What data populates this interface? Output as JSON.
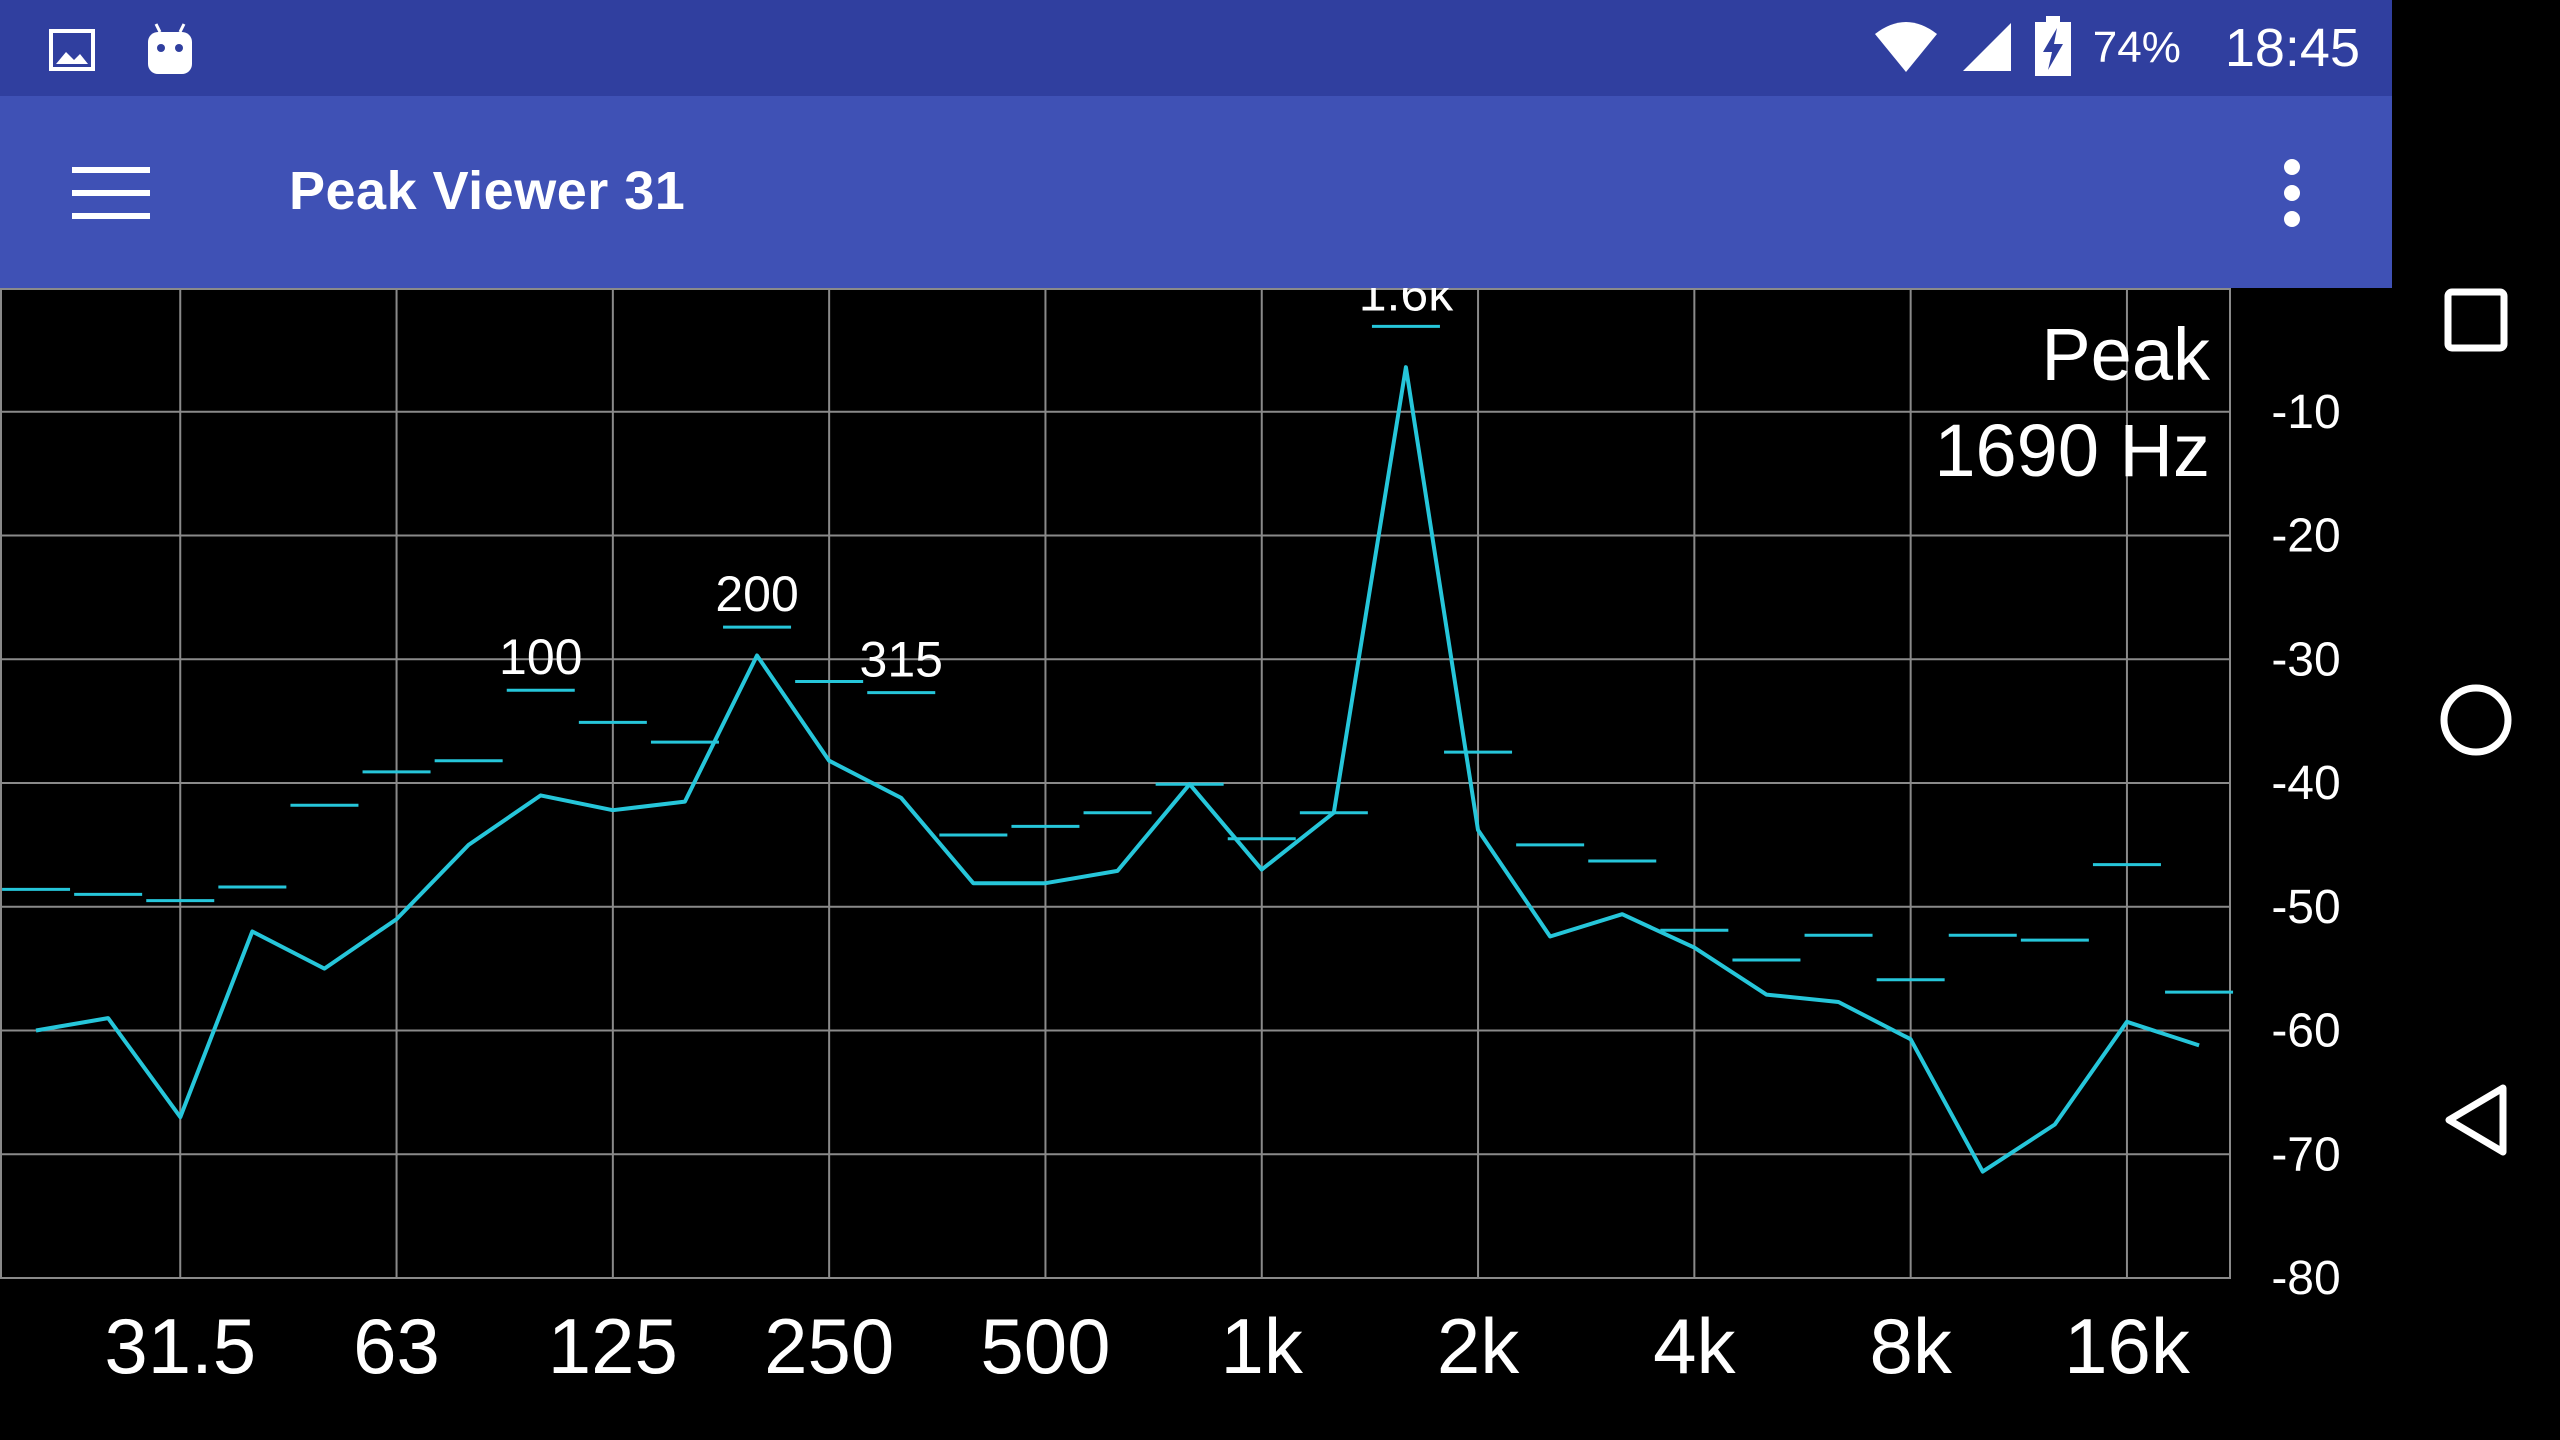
{
  "status_bar": {
    "battery_percent": "74%",
    "time": "18:45",
    "icons": [
      "image-icon",
      "android-icon",
      "wifi-icon",
      "signal-icon",
      "battery-charging-icon"
    ]
  },
  "app_bar": {
    "title": "Peak Viewer 31",
    "menu_icon": "hamburger-menu-icon",
    "overflow_icon": "more-vert-icon",
    "background": "#3f51b5",
    "status_background": "#303f9f"
  },
  "navigation": {
    "icons": [
      "recent-apps-icon",
      "home-icon",
      "back-icon"
    ]
  },
  "peak_info": {
    "label": "Peak",
    "frequency": "1690 Hz"
  },
  "chart_data": {
    "type": "line",
    "title": "",
    "xlabel": "",
    "ylabel": "",
    "ylim": [
      -80,
      0
    ],
    "y_ticks": [
      -10,
      -20,
      -30,
      -40,
      -50,
      -60,
      -70,
      -80
    ],
    "y_tick_labels": [
      "-10",
      "-20",
      "-30",
      "-40",
      "-50",
      "-60",
      "-70",
      "-80"
    ],
    "x_tick_labels": [
      "31.5",
      "63",
      "125",
      "250",
      "500",
      "1k",
      "2k",
      "4k",
      "8k",
      "16k"
    ],
    "bands": [
      "20",
      "25",
      "31.5",
      "40",
      "50",
      "63",
      "80",
      "100",
      "125",
      "160",
      "200",
      "250",
      "315",
      "400",
      "500",
      "630",
      "800",
      "1k",
      "1.25k",
      "1.6k",
      "2k",
      "2.5k",
      "3.15k",
      "4k",
      "5k",
      "6.3k",
      "8k",
      "10k",
      "12.5k",
      "16k",
      "20k"
    ],
    "grid": true,
    "line_color": "#26c6da",
    "series": [
      {
        "values": [
          -60,
          -59,
          -67,
          -52,
          -55,
          -51,
          -45,
          -41,
          -42.2,
          -41.5,
          -29.7,
          -38.2,
          -41.2,
          -48.1,
          -48.1,
          -47.1,
          -40.1,
          -47.0,
          -42.4,
          -6.4,
          -43.8,
          -52.4,
          -50.6,
          -53.3,
          -57.1,
          -57.7,
          -60.7,
          -71.4,
          -67.6,
          -59.3,
          -61.2
        ]
      },
      {
        "values": [
          -48.6,
          -49.0,
          -49.5,
          -48.4,
          -41.8,
          -39.1,
          -38.2,
          -32.5,
          -35.1,
          -36.7,
          -27.4,
          -31.8,
          -32.7,
          -44.2,
          -43.5,
          -42.4,
          -40.1,
          -44.5,
          -42.4,
          -3.1,
          -37.5,
          -45.0,
          -46.3,
          -51.9,
          -54.3,
          -52.3,
          -55.9,
          -52.3,
          -52.7,
          -46.6,
          -56.9
        ]
      }
    ],
    "peak_labels": [
      {
        "band": "100",
        "text": "100"
      },
      {
        "band": "200",
        "text": "200"
      },
      {
        "band": "315",
        "text": "315"
      },
      {
        "band": "1.6k",
        "text": "1.6k"
      }
    ]
  }
}
